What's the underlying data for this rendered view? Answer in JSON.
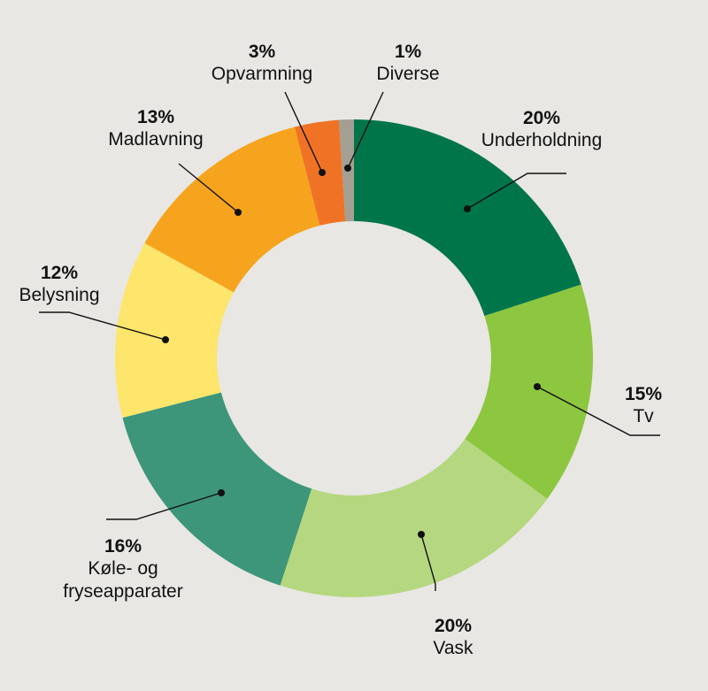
{
  "chart_data": {
    "type": "pie",
    "variant": "donut",
    "start": "12 o'clock, clockwise",
    "slices": [
      {
        "label": "Underholdning",
        "value": 20,
        "percent_label": "20%",
        "color": "#00754a"
      },
      {
        "label": "Tv",
        "value": 15,
        "percent_label": "15%",
        "color": "#8dc63f"
      },
      {
        "label": "Vask",
        "value": 20,
        "percent_label": "20%",
        "color": "#b5d77f"
      },
      {
        "label_lines": [
          "Køle- og",
          "fryseapparater"
        ],
        "label": "Køle- og fryseapparater",
        "value": 16,
        "percent_label": "16%",
        "color": "#3d967a"
      },
      {
        "label": "Belysning",
        "value": 12,
        "percent_label": "12%",
        "color": "#fee56b"
      },
      {
        "label": "Madlavning",
        "value": 13,
        "percent_label": "13%",
        "color": "#f6a41e"
      },
      {
        "label": "Opvarmning",
        "value": 3,
        "percent_label": "3%",
        "color": "#f07325"
      },
      {
        "label": "Diverse",
        "value": 1,
        "percent_label": "1%",
        "color": "#a39f93"
      }
    ],
    "legend": "none (callout labels)",
    "background": "#e8e7e3"
  }
}
